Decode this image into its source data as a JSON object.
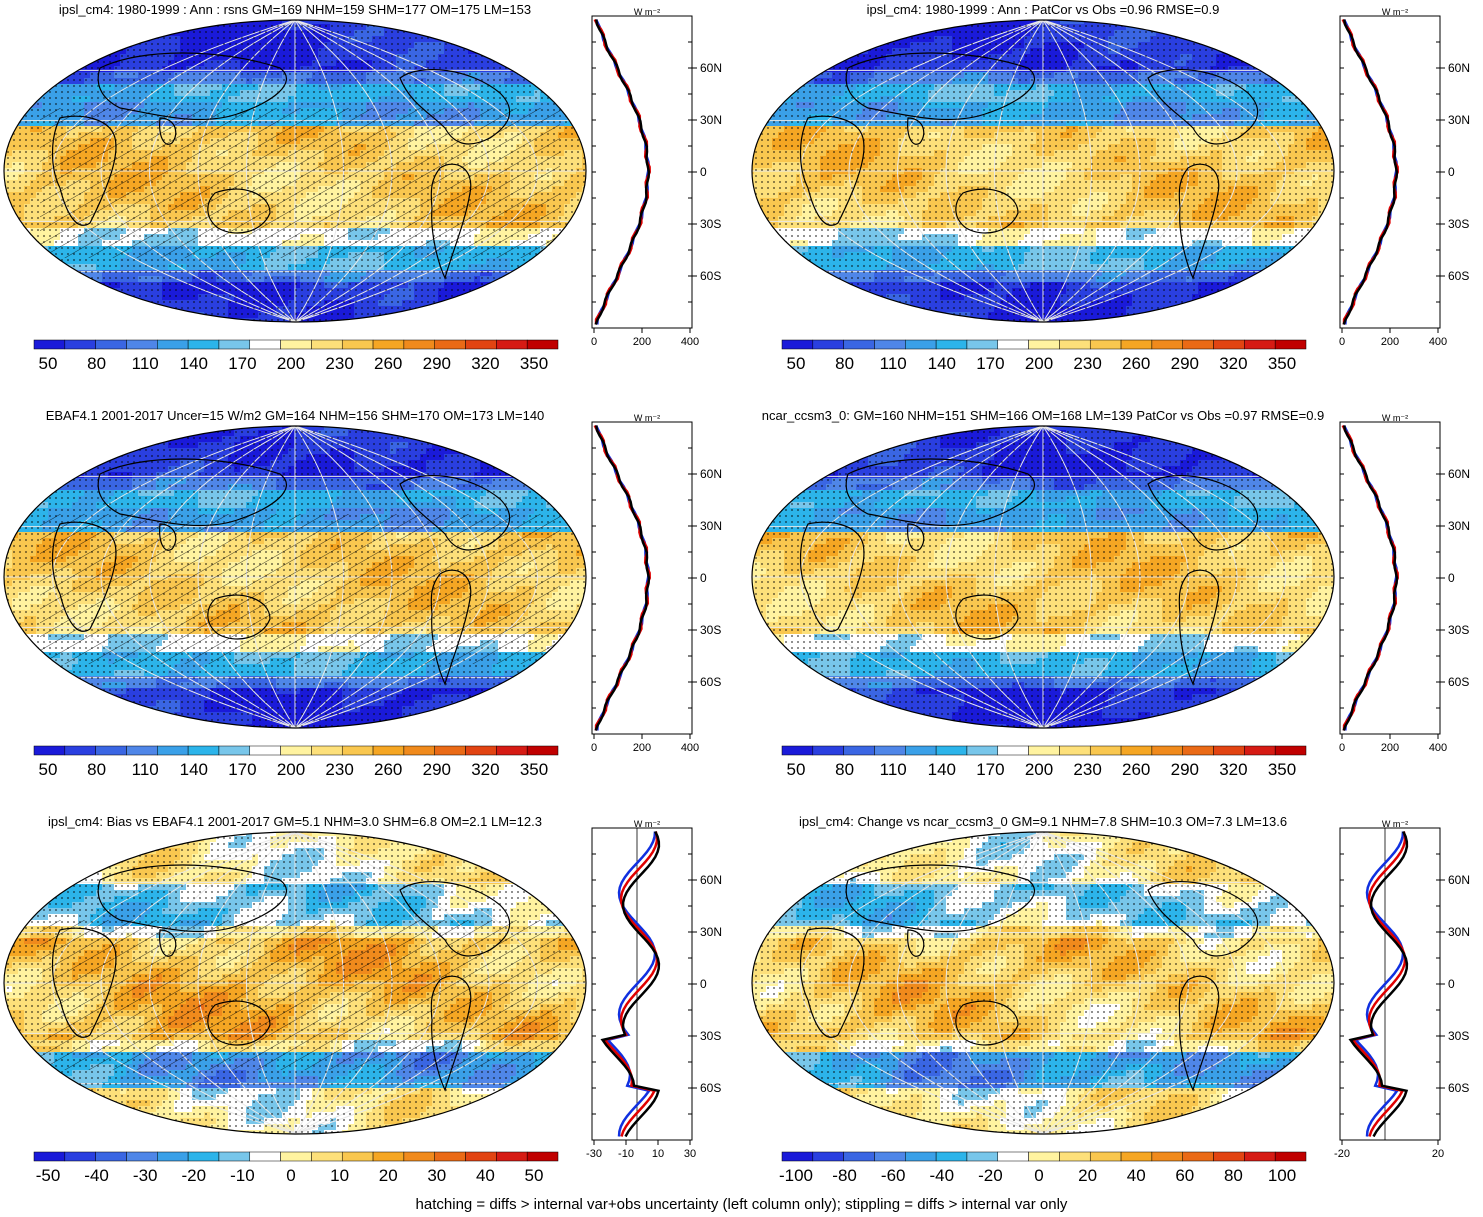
{
  "panels": [
    {
      "title": "ipsl_cm4: 1980-1999 : Ann : rsns GM=169 NHM=159 SHM=177 OM=175 LM=153",
      "kind": "clim",
      "hatch": true,
      "unit": "W m⁻²",
      "cbar_labels": [
        "50",
        "80",
        "110",
        "140",
        "170",
        "200",
        "230",
        "260",
        "290",
        "320",
        "350"
      ],
      "zonal_ticks": [
        "0",
        "200",
        "400"
      ]
    },
    {
      "title": "ipsl_cm4: 1980-1999 : Ann : PatCor vs Obs =0.96 RMSE=0.9",
      "kind": "clim",
      "hatch": false,
      "unit": "W m⁻²",
      "cbar_labels": [
        "50",
        "80",
        "110",
        "140",
        "170",
        "200",
        "230",
        "260",
        "290",
        "320",
        "350"
      ],
      "zonal_ticks": [
        "0",
        "200",
        "400"
      ]
    },
    {
      "title": "EBAF4.1 2001-2017 Uncer=15 W/m2 GM=164 NHM=156 SHM=170 OM=173 LM=140",
      "kind": "clim",
      "hatch": true,
      "unit": "W m⁻²",
      "cbar_labels": [
        "50",
        "80",
        "110",
        "140",
        "170",
        "200",
        "230",
        "260",
        "290",
        "320",
        "350"
      ],
      "zonal_ticks": [
        "0",
        "200",
        "400"
      ]
    },
    {
      "title": "ncar_ccsm3_0: GM=160 NHM=151 SHM=166 OM=168 LM=139 PatCor vs Obs =0.97 RMSE=0.9",
      "kind": "clim",
      "hatch": false,
      "unit": "W m⁻²",
      "cbar_labels": [
        "50",
        "80",
        "110",
        "140",
        "170",
        "200",
        "230",
        "260",
        "290",
        "320",
        "350"
      ],
      "zonal_ticks": [
        "0",
        "200",
        "400"
      ]
    },
    {
      "title": "ipsl_cm4: Bias vs EBAF4.1 2001-2017 GM=5.1 NHM=3.0 SHM=6.8 OM=2.1 LM=12.3",
      "kind": "diff",
      "hatch": true,
      "unit": "W m⁻²",
      "cbar_labels": [
        "-50",
        "-40",
        "-30",
        "-20",
        "-10",
        "0",
        "10",
        "20",
        "30",
        "40",
        "50"
      ],
      "zonal_ticks": [
        "-30",
        "-10",
        "10",
        "30"
      ]
    },
    {
      "title": "ipsl_cm4: Change vs ncar_ccsm3_0 GM=9.1 NHM=7.8 SHM=10.3 OM=7.3 LM=13.6",
      "kind": "diff",
      "hatch": false,
      "unit": "W m⁻²",
      "cbar_labels": [
        "-100",
        "-80",
        "-60",
        "-40",
        "-20",
        "0",
        "20",
        "40",
        "60",
        "80",
        "100"
      ],
      "zonal_ticks": [
        "-20",
        "20"
      ]
    }
  ],
  "lat_labels": [
    "60N",
    "30N",
    "0",
    "30S",
    "60S"
  ],
  "colors": {
    "scale": [
      "#1a1ad9",
      "#2a3fe0",
      "#3a66e3",
      "#4f86e8",
      "#3aa0e8",
      "#2cb4ea",
      "#78c6ea",
      "#ffffff",
      "#fff3a0",
      "#fde07a",
      "#f9c74f",
      "#f5a623",
      "#f08a1c",
      "#ea6a16",
      "#e24412",
      "#d61b14",
      "#c00000"
    ],
    "obs": "#000000",
    "model": "#e00000",
    "alt": "#1030e0"
  },
  "footer": "hatching = diffs > internal var+obs uncertainty (left column only); stippling = diffs > internal var only"
}
